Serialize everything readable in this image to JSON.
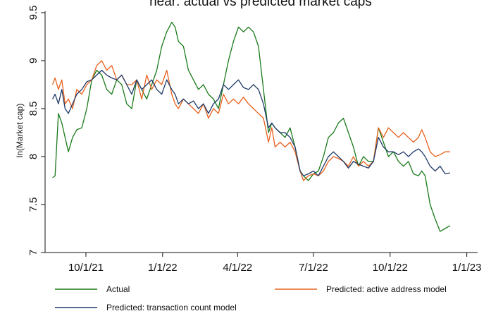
{
  "chart_data": {
    "type": "line",
    "title": "near: actual vs predicted market caps",
    "xlabel": "",
    "ylabel": "ln(Market cap)",
    "ylim": [
      7,
      9.5
    ],
    "xlim": [
      "2021-08-13",
      "2023-01-14"
    ],
    "grid": false,
    "legend_position": "bottom",
    "x_ticks": [
      {
        "date": "2021-10-01",
        "label": "10/1/21"
      },
      {
        "date": "2022-01-01",
        "label": "1/1/22"
      },
      {
        "date": "2022-04-01",
        "label": "4/1/22"
      },
      {
        "date": "2022-07-01",
        "label": "7/1/22"
      },
      {
        "date": "2022-10-01",
        "label": "10/1/22"
      },
      {
        "date": "2023-01-01",
        "label": "1/1/23"
      }
    ],
    "y_ticks": [
      {
        "value": 7,
        "label": "7"
      },
      {
        "value": 7.5,
        "label": "7.5"
      },
      {
        "value": 8,
        "label": "8"
      },
      {
        "value": 8.5,
        "label": "8.5"
      },
      {
        "value": 9,
        "label": "9"
      },
      {
        "value": 9.5,
        "label": "9.5"
      }
    ],
    "series": [
      {
        "name": "Actual",
        "color": "#1a7a1a",
        "x": [
          "2021-08-22",
          "2021-08-25",
          "2021-08-29",
          "2021-09-02",
          "2021-09-06",
          "2021-09-10",
          "2021-09-15",
          "2021-09-20",
          "2021-09-26",
          "2021-10-02",
          "2021-10-08",
          "2021-10-14",
          "2021-10-20",
          "2021-10-26",
          "2021-11-01",
          "2021-11-07",
          "2021-11-13",
          "2021-11-19",
          "2021-11-25",
          "2021-12-01",
          "2021-12-07",
          "2021-12-13",
          "2021-12-19",
          "2021-12-25",
          "2021-12-31",
          "2022-01-06",
          "2022-01-12",
          "2022-01-16",
          "2022-01-20",
          "2022-01-26",
          "2022-02-01",
          "2022-02-07",
          "2022-02-13",
          "2022-02-19",
          "2022-02-25",
          "2022-03-03",
          "2022-03-09",
          "2022-03-15",
          "2022-03-21",
          "2022-03-27",
          "2022-04-02",
          "2022-04-08",
          "2022-04-14",
          "2022-04-20",
          "2022-04-26",
          "2022-05-02",
          "2022-05-08",
          "2022-05-12",
          "2022-05-16",
          "2022-05-22",
          "2022-05-28",
          "2022-06-03",
          "2022-06-09",
          "2022-06-15",
          "2022-06-19",
          "2022-06-25",
          "2022-07-01",
          "2022-07-07",
          "2022-07-13",
          "2022-07-19",
          "2022-07-25",
          "2022-07-31",
          "2022-08-06",
          "2022-08-12",
          "2022-08-18",
          "2022-08-24",
          "2022-08-30",
          "2022-09-05",
          "2022-09-11",
          "2022-09-17",
          "2022-09-23",
          "2022-09-29",
          "2022-10-05",
          "2022-10-11",
          "2022-10-17",
          "2022-10-23",
          "2022-10-29",
          "2022-11-04",
          "2022-11-08",
          "2022-11-12",
          "2022-11-18",
          "2022-11-24",
          "2022-11-30",
          "2022-12-06",
          "2022-12-12"
        ],
        "y": [
          7.78,
          7.8,
          8.45,
          8.35,
          8.2,
          8.05,
          8.2,
          8.28,
          8.3,
          8.5,
          8.8,
          8.9,
          8.85,
          8.7,
          8.65,
          8.8,
          8.75,
          8.55,
          8.5,
          8.8,
          8.7,
          8.6,
          8.75,
          8.9,
          9.15,
          9.3,
          9.4,
          9.35,
          9.2,
          9.15,
          8.9,
          8.8,
          8.7,
          8.75,
          8.65,
          8.6,
          8.5,
          8.75,
          9.0,
          9.2,
          9.35,
          9.3,
          9.35,
          9.3,
          9.15,
          8.7,
          8.25,
          8.35,
          8.3,
          8.25,
          8.2,
          8.3,
          8.1,
          7.85,
          7.8,
          7.75,
          7.82,
          7.85,
          8.0,
          8.2,
          8.25,
          8.35,
          8.4,
          8.25,
          8.1,
          7.9,
          8.0,
          7.95,
          7.95,
          8.3,
          8.15,
          8.0,
          8.05,
          7.95,
          7.9,
          7.95,
          7.82,
          7.8,
          7.85,
          7.8,
          7.5,
          7.35,
          7.22,
          7.25,
          7.28
        ]
      },
      {
        "name": "Predicted: active address model",
        "color": "#e8601c",
        "x": [
          "2021-08-22",
          "2021-08-25",
          "2021-08-29",
          "2021-09-02",
          "2021-09-06",
          "2021-09-10",
          "2021-09-15",
          "2021-09-20",
          "2021-09-26",
          "2021-10-02",
          "2021-10-08",
          "2021-10-14",
          "2021-10-20",
          "2021-10-26",
          "2021-11-01",
          "2021-11-07",
          "2021-11-13",
          "2021-11-19",
          "2021-11-25",
          "2021-12-01",
          "2021-12-07",
          "2021-12-13",
          "2021-12-19",
          "2021-12-25",
          "2021-12-31",
          "2022-01-06",
          "2022-01-12",
          "2022-01-16",
          "2022-01-20",
          "2022-01-26",
          "2022-02-01",
          "2022-02-07",
          "2022-02-13",
          "2022-02-19",
          "2022-02-25",
          "2022-03-03",
          "2022-03-09",
          "2022-03-15",
          "2022-03-21",
          "2022-03-27",
          "2022-04-02",
          "2022-04-08",
          "2022-04-14",
          "2022-04-20",
          "2022-04-26",
          "2022-05-02",
          "2022-05-08",
          "2022-05-12",
          "2022-05-16",
          "2022-05-22",
          "2022-05-28",
          "2022-06-03",
          "2022-06-09",
          "2022-06-15",
          "2022-06-19",
          "2022-06-25",
          "2022-07-01",
          "2022-07-07",
          "2022-07-13",
          "2022-07-19",
          "2022-07-25",
          "2022-07-31",
          "2022-08-06",
          "2022-08-12",
          "2022-08-18",
          "2022-08-24",
          "2022-08-30",
          "2022-09-05",
          "2022-09-11",
          "2022-09-17",
          "2022-09-23",
          "2022-09-29",
          "2022-10-05",
          "2022-10-11",
          "2022-10-17",
          "2022-10-23",
          "2022-10-29",
          "2022-11-04",
          "2022-11-08",
          "2022-11-12",
          "2022-11-18",
          "2022-11-24",
          "2022-11-30",
          "2022-12-06",
          "2022-12-12"
        ],
        "y": [
          8.75,
          8.82,
          8.7,
          8.8,
          8.55,
          8.6,
          8.5,
          8.7,
          8.65,
          8.75,
          8.8,
          8.95,
          9.0,
          8.9,
          8.95,
          8.8,
          8.85,
          8.75,
          8.75,
          8.8,
          8.6,
          8.85,
          8.7,
          8.8,
          8.75,
          8.9,
          8.65,
          8.55,
          8.5,
          8.6,
          8.55,
          8.5,
          8.45,
          8.55,
          8.4,
          8.5,
          8.45,
          8.65,
          8.55,
          8.6,
          8.55,
          8.62,
          8.55,
          8.5,
          8.45,
          8.4,
          8.15,
          8.3,
          8.1,
          8.15,
          8.1,
          8.15,
          8.05,
          7.85,
          7.75,
          7.8,
          7.82,
          7.8,
          7.85,
          7.95,
          8.0,
          7.98,
          7.95,
          7.9,
          8.0,
          7.9,
          7.95,
          7.9,
          7.95,
          8.3,
          8.2,
          8.3,
          8.25,
          8.2,
          8.25,
          8.2,
          8.15,
          8.2,
          8.28,
          8.2,
          8.05,
          8.0,
          8.02,
          8.05,
          8.05
        ]
      },
      {
        "name": "Predicted: transaction count model",
        "color": "#1f3a68",
        "x": [
          "2021-08-22",
          "2021-08-25",
          "2021-08-29",
          "2021-09-02",
          "2021-09-06",
          "2021-09-10",
          "2021-09-15",
          "2021-09-20",
          "2021-09-26",
          "2021-10-02",
          "2021-10-08",
          "2021-10-14",
          "2021-10-20",
          "2021-10-26",
          "2021-11-01",
          "2021-11-07",
          "2021-11-13",
          "2021-11-19",
          "2021-11-25",
          "2021-12-01",
          "2021-12-07",
          "2021-12-13",
          "2021-12-19",
          "2021-12-25",
          "2021-12-31",
          "2022-01-06",
          "2022-01-12",
          "2022-01-16",
          "2022-01-20",
          "2022-01-26",
          "2022-02-01",
          "2022-02-07",
          "2022-02-13",
          "2022-02-19",
          "2022-02-25",
          "2022-03-03",
          "2022-03-09",
          "2022-03-15",
          "2022-03-21",
          "2022-03-27",
          "2022-04-02",
          "2022-04-08",
          "2022-04-14",
          "2022-04-20",
          "2022-04-26",
          "2022-05-02",
          "2022-05-08",
          "2022-05-12",
          "2022-05-16",
          "2022-05-22",
          "2022-05-28",
          "2022-06-03",
          "2022-06-09",
          "2022-06-15",
          "2022-06-19",
          "2022-06-25",
          "2022-07-01",
          "2022-07-07",
          "2022-07-13",
          "2022-07-19",
          "2022-07-25",
          "2022-07-31",
          "2022-08-06",
          "2022-08-12",
          "2022-08-18",
          "2022-08-24",
          "2022-08-30",
          "2022-09-05",
          "2022-09-11",
          "2022-09-17",
          "2022-09-23",
          "2022-09-29",
          "2022-10-05",
          "2022-10-11",
          "2022-10-17",
          "2022-10-23",
          "2022-10-29",
          "2022-11-04",
          "2022-11-08",
          "2022-11-12",
          "2022-11-18",
          "2022-11-24",
          "2022-11-30",
          "2022-12-06",
          "2022-12-12"
        ],
        "y": [
          8.6,
          8.65,
          8.55,
          8.7,
          8.5,
          8.45,
          8.55,
          8.65,
          8.7,
          8.78,
          8.8,
          8.85,
          8.9,
          8.85,
          8.82,
          8.8,
          8.85,
          8.75,
          8.65,
          8.8,
          8.7,
          8.75,
          8.8,
          8.7,
          8.65,
          8.8,
          8.7,
          8.65,
          8.55,
          8.6,
          8.55,
          8.58,
          8.5,
          8.55,
          8.45,
          8.55,
          8.6,
          8.75,
          8.7,
          8.75,
          8.8,
          8.72,
          8.7,
          8.75,
          8.7,
          8.55,
          8.3,
          8.35,
          8.3,
          8.25,
          8.25,
          8.2,
          8.1,
          7.85,
          7.8,
          7.82,
          7.85,
          7.8,
          7.9,
          8.0,
          8.05,
          8.0,
          7.95,
          7.88,
          7.95,
          7.92,
          7.9,
          7.88,
          7.95,
          8.2,
          8.1,
          8.05,
          8.05,
          8.02,
          8.05,
          8.0,
          8.05,
          8.08,
          8.05,
          8.0,
          7.9,
          7.85,
          7.9,
          7.82,
          7.83
        ]
      }
    ]
  }
}
